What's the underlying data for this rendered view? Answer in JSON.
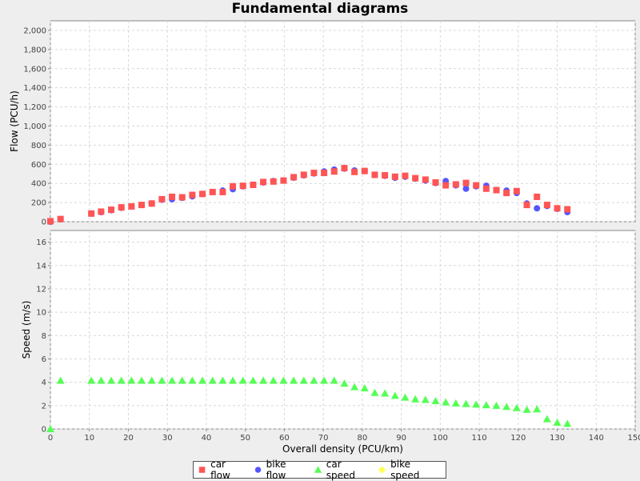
{
  "chart_data": [
    {
      "type": "scatter",
      "title": "Fundamental diagrams",
      "xlabel": "Overall density (PCU/km)",
      "ylabel": "Flow (PCU/h)",
      "xlim": [
        0,
        150
      ],
      "ylim": [
        0,
        2100
      ],
      "x_ticks": [
        "0",
        "10",
        "20",
        "30",
        "40",
        "50",
        "60",
        "70",
        "80",
        "90",
        "100",
        "110",
        "120",
        "130",
        "140",
        "150"
      ],
      "y_ticks": [
        "0",
        "200",
        "400",
        "600",
        "800",
        "1,000",
        "1,200",
        "1,400",
        "1,600",
        "1,800",
        "2,000"
      ],
      "grid": true,
      "series": [
        {
          "name": "bike flow",
          "points": [
            [
              0,
              0
            ],
            [
              2.6,
              25
            ],
            [
              10.5,
              85
            ],
            [
              13,
              100
            ],
            [
              15.6,
              120
            ],
            [
              18.2,
              145
            ],
            [
              20.8,
              160
            ],
            [
              23.4,
              175
            ],
            [
              26,
              190
            ],
            [
              28.6,
              230
            ],
            [
              31.2,
              235
            ],
            [
              33.8,
              250
            ],
            [
              36.4,
              265
            ],
            [
              39,
              290
            ],
            [
              41.6,
              310
            ],
            [
              44.2,
              325
            ],
            [
              46.8,
              340
            ],
            [
              49.4,
              370
            ],
            [
              52,
              385
            ],
            [
              54.6,
              410
            ],
            [
              57.2,
              425
            ],
            [
              59.8,
              430
            ],
            [
              62.4,
              460
            ],
            [
              65,
              485
            ],
            [
              67.6,
              505
            ],
            [
              70.2,
              525
            ],
            [
              72.8,
              545
            ],
            [
              75.4,
              555
            ],
            [
              78,
              535
            ],
            [
              80.6,
              530
            ],
            [
              83.2,
              490
            ],
            [
              85.8,
              480
            ],
            [
              88.4,
              460
            ],
            [
              91,
              470
            ],
            [
              93.6,
              450
            ],
            [
              96.2,
              430
            ],
            [
              98.8,
              405
            ],
            [
              101.4,
              425
            ],
            [
              104,
              380
            ],
            [
              106.6,
              345
            ],
            [
              109.2,
              370
            ],
            [
              111.8,
              375
            ],
            [
              114.4,
              330
            ],
            [
              117,
              325
            ],
            [
              119.6,
              300
            ],
            [
              122.2,
              190
            ],
            [
              124.8,
              140
            ],
            [
              127.4,
              165
            ],
            [
              130,
              135
            ],
            [
              132.6,
              100
            ]
          ]
        },
        {
          "name": "car flow",
          "points": [
            [
              0,
              5
            ],
            [
              2.6,
              28
            ],
            [
              10.5,
              85
            ],
            [
              13,
              105
            ],
            [
              15.6,
              125
            ],
            [
              18.2,
              150
            ],
            [
              20.8,
              160
            ],
            [
              23.4,
              175
            ],
            [
              26,
              190
            ],
            [
              28.6,
              235
            ],
            [
              31.2,
              260
            ],
            [
              33.8,
              255
            ],
            [
              36.4,
              280
            ],
            [
              39,
              290
            ],
            [
              41.6,
              310
            ],
            [
              44.2,
              310
            ],
            [
              46.8,
              370
            ],
            [
              49.4,
              375
            ],
            [
              52,
              385
            ],
            [
              54.6,
              415
            ],
            [
              57.2,
              420
            ],
            [
              59.8,
              430
            ],
            [
              62.4,
              465
            ],
            [
              65,
              490
            ],
            [
              67.6,
              510
            ],
            [
              70.2,
              510
            ],
            [
              72.8,
              525
            ],
            [
              75.4,
              560
            ],
            [
              78,
              520
            ],
            [
              80.6,
              530
            ],
            [
              83.2,
              490
            ],
            [
              85.8,
              485
            ],
            [
              88.4,
              470
            ],
            [
              91,
              480
            ],
            [
              93.6,
              455
            ],
            [
              96.2,
              440
            ],
            [
              98.8,
              410
            ],
            [
              101.4,
              380
            ],
            [
              104,
              390
            ],
            [
              106.6,
              405
            ],
            [
              109.2,
              380
            ],
            [
              111.8,
              345
            ],
            [
              114.4,
              330
            ],
            [
              117,
              300
            ],
            [
              119.6,
              320
            ],
            [
              122.2,
              175
            ],
            [
              124.8,
              260
            ],
            [
              127.4,
              175
            ],
            [
              130,
              140
            ],
            [
              132.6,
              130
            ]
          ]
        }
      ]
    },
    {
      "type": "scatter",
      "xlabel": "Overall density (PCU/km)",
      "ylabel": "Speed (m/s)",
      "xlim": [
        0,
        150
      ],
      "ylim": [
        0,
        17
      ],
      "x_ticks": [
        "0",
        "10",
        "20",
        "30",
        "40",
        "50",
        "60",
        "70",
        "80",
        "90",
        "100",
        "110",
        "120",
        "130",
        "140",
        "150"
      ],
      "y_ticks": [
        "0",
        "2",
        "4",
        "6",
        "8",
        "10",
        "12",
        "14",
        "16"
      ],
      "grid": true,
      "series": [
        {
          "name": "car speed",
          "points": [
            [
              0,
              0
            ],
            [
              2.6,
              4.15
            ],
            [
              10.5,
              4.15
            ],
            [
              13,
              4.15
            ],
            [
              15.6,
              4.15
            ],
            [
              18.2,
              4.15
            ],
            [
              20.8,
              4.15
            ],
            [
              23.4,
              4.15
            ],
            [
              26,
              4.15
            ],
            [
              28.6,
              4.15
            ],
            [
              31.2,
              4.15
            ],
            [
              33.8,
              4.15
            ],
            [
              36.4,
              4.15
            ],
            [
              39,
              4.15
            ],
            [
              41.6,
              4.15
            ],
            [
              44.2,
              4.15
            ],
            [
              46.8,
              4.15
            ],
            [
              49.4,
              4.15
            ],
            [
              52,
              4.15
            ],
            [
              54.6,
              4.15
            ],
            [
              57.2,
              4.15
            ],
            [
              59.8,
              4.15
            ],
            [
              62.4,
              4.15
            ],
            [
              65,
              4.15
            ],
            [
              67.6,
              4.15
            ],
            [
              70.2,
              4.15
            ],
            [
              72.8,
              4.15
            ],
            [
              75.4,
              3.9
            ],
            [
              78,
              3.6
            ],
            [
              80.6,
              3.5
            ],
            [
              83.2,
              3.1
            ],
            [
              85.8,
              3.05
            ],
            [
              88.4,
              2.85
            ],
            [
              91,
              2.7
            ],
            [
              93.6,
              2.55
            ],
            [
              96.2,
              2.5
            ],
            [
              98.8,
              2.4
            ],
            [
              101.4,
              2.3
            ],
            [
              104,
              2.2
            ],
            [
              106.6,
              2.15
            ],
            [
              109.2,
              2.1
            ],
            [
              111.8,
              2.05
            ],
            [
              114.4,
              2.0
            ],
            [
              117,
              1.9
            ],
            [
              119.6,
              1.8
            ],
            [
              122.2,
              1.65
            ],
            [
              124.8,
              1.7
            ],
            [
              127.4,
              0.85
            ],
            [
              130,
              0.55
            ],
            [
              132.6,
              0.45
            ]
          ]
        }
      ]
    }
  ],
  "legend": [
    {
      "label": "car flow",
      "symbol": "square",
      "color": "#ff5555"
    },
    {
      "label": "bike flow",
      "symbol": "circle",
      "color": "#5555ff"
    },
    {
      "label": "car speed",
      "symbol": "triangle",
      "color": "#55ff55"
    },
    {
      "label": "bike speed",
      "symbol": "diamond",
      "color": "#ffff55"
    }
  ]
}
